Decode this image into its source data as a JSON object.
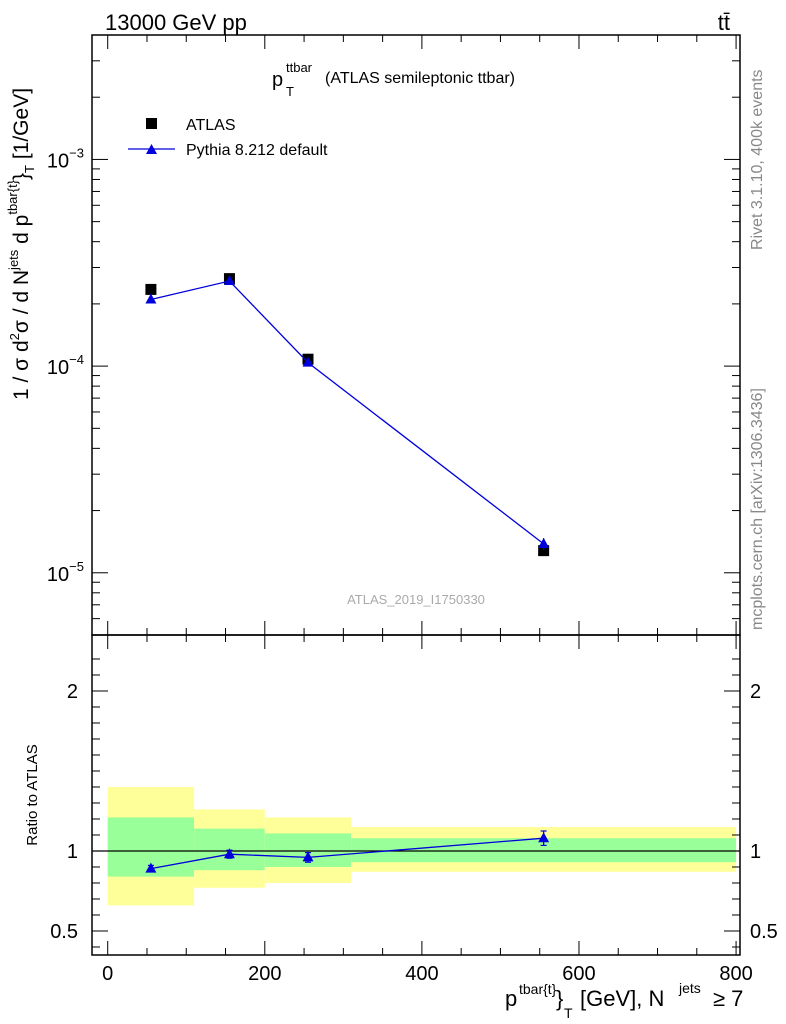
{
  "header": {
    "energy": "13000 GeV pp",
    "process": "tt̄"
  },
  "side_labels": {
    "rivet": "Rivet 3.1.10,  400k events",
    "mcplots": "mcplots.cern.ch [arXiv:1306.3436]"
  },
  "chart_data": [
    {
      "type": "scatter",
      "panel": "main",
      "title": "p_T^ttbar (ATLAS semileptonic ttbar)",
      "title_main": "p",
      "title_sup": "ttbar",
      "title_sub": "T",
      "title_rest": "(ATLAS semileptonic ttbar)",
      "ylabel": "1 / σ d²σ / d N^jets d p^tbar{t}_T [1/GeV]",
      "yscale": "log",
      "ylim": [
        5e-06,
        0.004
      ],
      "xlim": [
        -20,
        805
      ],
      "ytick_labels": [
        {
          "value": 0.001,
          "base": "10",
          "exp": "−3"
        },
        {
          "value": 0.0001,
          "base": "10",
          "exp": "−4"
        },
        {
          "value": 1e-05,
          "base": "10",
          "exp": "−5"
        }
      ],
      "watermark": "ATLAS_2019_I1750330",
      "legend_position": "top-left",
      "series": [
        {
          "name": "ATLAS",
          "marker": "square",
          "color": "#000000",
          "x": [
            55,
            155,
            255,
            555
          ],
          "y": [
            0.000235,
            0.000265,
            0.000108,
            1.28e-05
          ],
          "yerr": [
            0,
            0,
            0,
            0
          ]
        },
        {
          "name": "Pythia 8.212 default",
          "marker": "triangle",
          "color": "#0000dd",
          "x": [
            55,
            155,
            255,
            555
          ],
          "y": [
            0.00021,
            0.000258,
            0.000104,
            1.38e-05
          ],
          "yerr": [
            4e-06,
            5e-06,
            3e-06,
            9e-07
          ]
        }
      ]
    },
    {
      "type": "scatter",
      "panel": "ratio",
      "ylabel": "Ratio to ATLAS",
      "yscale": "linear",
      "ylim": [
        0.35,
        2.35
      ],
      "xlim": [
        -20,
        805
      ],
      "yticks": [
        0.5,
        1,
        2
      ],
      "ytick_labels": [
        "0.5",
        "1",
        "2"
      ],
      "xticks": [
        0,
        200,
        400,
        600,
        800
      ],
      "xtick_labels": [
        "0",
        "200",
        "400",
        "600",
        "800"
      ],
      "xlabel_parts": {
        "p": "p",
        "p_sup": "tbar{t}",
        "p_close": "}",
        "p_sub": "T",
        "unit": "[GeV], N",
        "n_sup": "jets",
        "cond": "≥ 7"
      },
      "bands": [
        {
          "x0": 0,
          "x1": 110,
          "yellow": [
            0.66,
            1.4
          ],
          "green": [
            0.84,
            1.21
          ]
        },
        {
          "x0": 110,
          "x1": 200,
          "yellow": [
            0.77,
            1.26
          ],
          "green": [
            0.88,
            1.14
          ]
        },
        {
          "x0": 200,
          "x1": 310,
          "yellow": [
            0.8,
            1.21
          ],
          "green": [
            0.9,
            1.11
          ]
        },
        {
          "x0": 310,
          "x1": 800,
          "yellow": [
            0.87,
            1.15
          ],
          "green": [
            0.93,
            1.08
          ]
        }
      ],
      "band_colors": {
        "yellow": "#ffff99",
        "green": "#99ff99"
      },
      "series": [
        {
          "name": "Pythia 8.212 default / ATLAS",
          "color": "#0000dd",
          "x": [
            55,
            155,
            255,
            555
          ],
          "y": [
            0.89,
            0.98,
            0.96,
            1.08
          ],
          "yerr": [
            0.02,
            0.025,
            0.03,
            0.045
          ]
        }
      ]
    }
  ]
}
